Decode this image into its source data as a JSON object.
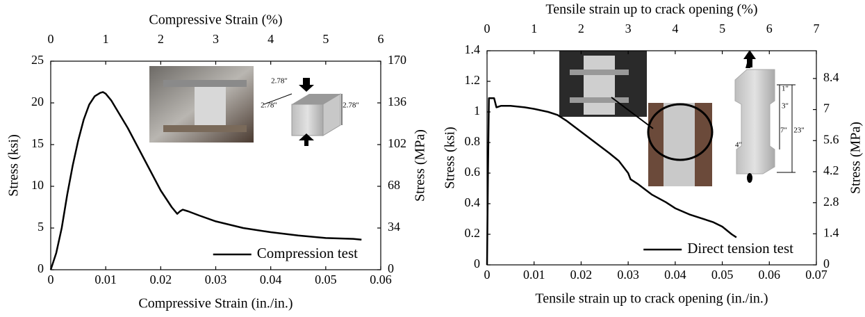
{
  "chart_data": [
    {
      "type": "line",
      "x": [
        0,
        0.001,
        0.002,
        0.003,
        0.004,
        0.005,
        0.006,
        0.007,
        0.008,
        0.009,
        0.0095,
        0.01,
        0.011,
        0.012,
        0.014,
        0.016,
        0.018,
        0.02,
        0.022,
        0.023,
        0.0235,
        0.024,
        0.025,
        0.027,
        0.03,
        0.035,
        0.04,
        0.045,
        0.05,
        0.055,
        0.0565
      ],
      "series": [
        {
          "name": "Compression test",
          "color": "#000000",
          "values": [
            0,
            2,
            5,
            9,
            12.5,
            15.5,
            18,
            19.8,
            20.8,
            21.2,
            21.3,
            21.1,
            20.3,
            19.2,
            17,
            14.5,
            12,
            9.5,
            7.5,
            6.7,
            7.0,
            7.2,
            7.0,
            6.5,
            5.8,
            5.0,
            4.5,
            4.1,
            3.8,
            3.7,
            3.6
          ]
        }
      ],
      "xlabel": "Compressive Strain (in./in.)",
      "x2label": "Compressive Strain (%)",
      "ylabel": "Stress (ksi)",
      "y2label": "Stress (MPa)",
      "xlim": [
        0,
        0.06
      ],
      "xticks": [
        0,
        0.01,
        0.02,
        0.03,
        0.04,
        0.05,
        0.06
      ],
      "x2lim": [
        0,
        6
      ],
      "x2ticks": [
        0,
        1,
        2,
        3,
        4,
        5,
        6
      ],
      "ylim": [
        0,
        25
      ],
      "yticks": [
        0,
        5,
        10,
        15,
        20,
        25
      ],
      "y2lim": [
        0,
        170
      ],
      "y2ticks": [
        0,
        34,
        68,
        102,
        136,
        170
      ],
      "legend": "lower right",
      "annotations": [
        "2.78\"",
        "2.78\"",
        "2.78\""
      ]
    },
    {
      "type": "line",
      "x": [
        0,
        0.0002,
        0.0004,
        0.0015,
        0.002,
        0.003,
        0.005,
        0.008,
        0.01,
        0.013,
        0.015,
        0.017,
        0.02,
        0.023,
        0.026,
        0.028,
        0.03,
        0.0305,
        0.032,
        0.035,
        0.038,
        0.04,
        0.043,
        0.045,
        0.048,
        0.05,
        0.052,
        0.053
      ],
      "series": [
        {
          "name": "Direct tension test",
          "color": "#000000",
          "values": [
            0,
            0.6,
            1.09,
            1.09,
            1.03,
            1.04,
            1.04,
            1.03,
            1.02,
            1.0,
            0.98,
            0.94,
            0.87,
            0.8,
            0.73,
            0.68,
            0.6,
            0.56,
            0.53,
            0.46,
            0.41,
            0.37,
            0.33,
            0.31,
            0.28,
            0.25,
            0.2,
            0.18
          ]
        }
      ],
      "xlabel": "Tensile strain up to crack opening (in./in.)",
      "x2label": "Tensile strain up to crack opening (%)",
      "ylabel": "Stress (ksi)",
      "y2label": "Stress (MPa)",
      "xlim": [
        0,
        0.07
      ],
      "xticks": [
        0,
        0.01,
        0.02,
        0.03,
        0.04,
        0.05,
        0.06,
        0.07
      ],
      "x2lim": [
        0,
        7
      ],
      "x2ticks": [
        0,
        1,
        2,
        3,
        4,
        5,
        6,
        7
      ],
      "ylim": [
        0,
        1.4
      ],
      "yticks": [
        0,
        0.2,
        0.4,
        0.6,
        0.8,
        1,
        1.2,
        1.4
      ],
      "y2lim": [
        0,
        9.65
      ],
      "y2ticks": [
        0,
        1.4,
        2.8,
        4.2,
        5.6,
        7,
        8.4
      ],
      "legend": "lower right",
      "annotations": [
        "1\"",
        "3\"",
        "7\"",
        "23\"",
        "4\""
      ]
    }
  ]
}
